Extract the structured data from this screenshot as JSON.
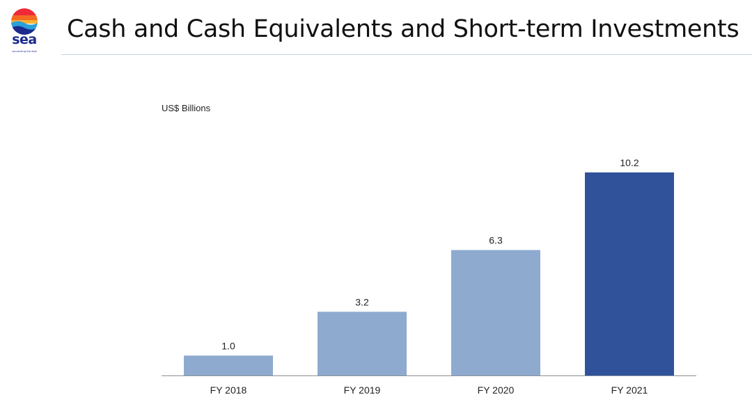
{
  "logo": {
    "wordmark": "sea",
    "tagline": "connecting the dots",
    "colors": [
      "#ee2a3a",
      "#f36b21",
      "#f9b233",
      "#2c9fd9",
      "#1b2a8c"
    ]
  },
  "header": {
    "title": "Cash and Cash Equivalents and Short-term Investments"
  },
  "chart_data": {
    "type": "bar",
    "title": "Cash and Cash Equivalents and Short-term Investments",
    "unit_label": "US$ Billions",
    "xlabel": "",
    "ylabel": "",
    "categories": [
      "FY 2018",
      "FY 2019",
      "FY 2020",
      "FY 2021"
    ],
    "values": [
      1.0,
      3.2,
      6.3,
      10.2
    ],
    "value_labels": [
      "1.0",
      "3.2",
      "6.3",
      "10.2"
    ],
    "bar_colors": [
      "#8eaacf",
      "#8eaacf",
      "#8eaacf",
      "#2f529a"
    ],
    "ylim": [
      0,
      10.2
    ],
    "grid": false,
    "legend": "none"
  }
}
